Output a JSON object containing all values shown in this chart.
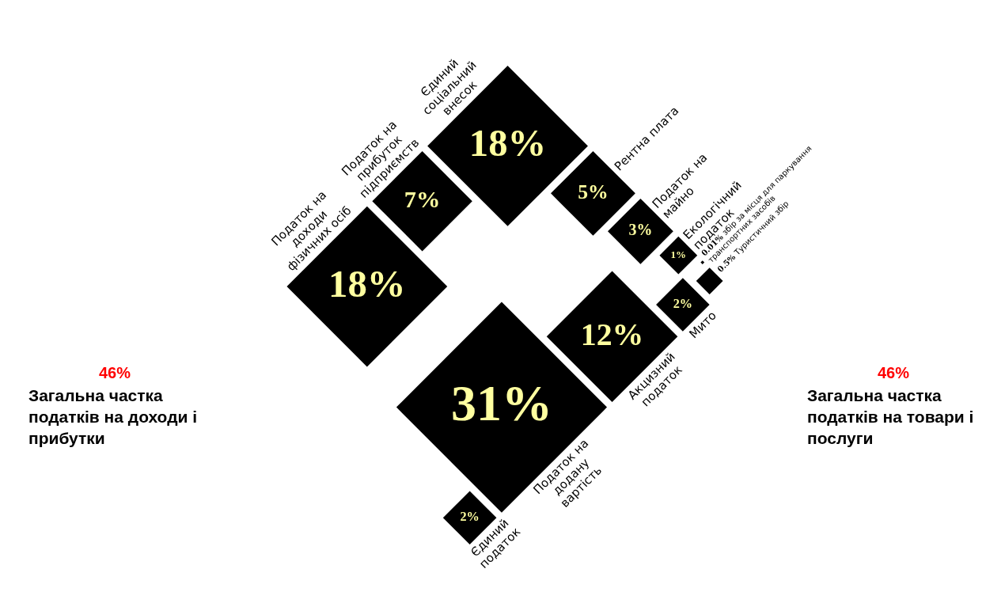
{
  "chart_data": {
    "type": "other",
    "categories": [
      "Податок на доходи фізичних осіб",
      "Податок на прибуток підприємств",
      "Єдиний соціальний внесок",
      "Рентна плата",
      "Податок на майно",
      "Екологічний податок",
      "збір за місця для паркування транспортних засобів",
      "Туристичний збір",
      "Мито",
      "Акцизний податок",
      "Податок на додану вартість",
      "Єдиний податок"
    ],
    "values": [
      18,
      7,
      18,
      5,
      3,
      1,
      0.01,
      0.5,
      2,
      12,
      31,
      2
    ],
    "value_labels": [
      "18%",
      "7%",
      "18%",
      "5%",
      "3%",
      "1%",
      "0.01%",
      "0.5%",
      "2%",
      "12%",
      "31%",
      "2%"
    ],
    "color": "#000000",
    "annotations": [
      "46%",
      "Загальна частка податків на доходи і прибутки",
      "46%",
      "Загальна частка податків на товари і послуги"
    ]
  }
}
